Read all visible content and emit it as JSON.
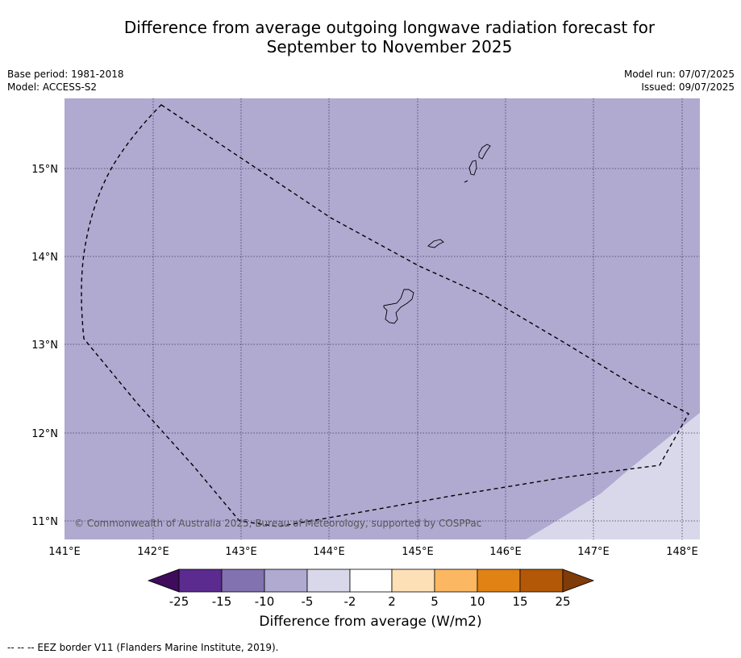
{
  "title": {
    "line1": "Difference from average outgoing longwave radiation forecast for",
    "line2": "September to November 2025"
  },
  "meta": {
    "base_period": "Base period: 1981-2018",
    "model": "Model: ACCESS-S2",
    "model_run": "Model run: 07/07/2025",
    "issued": "Issued: 09/07/2025"
  },
  "map": {
    "copyright": "© Commonwealth of Australia 2025, Bureau of Meteorology, supported by COSPPac",
    "lon_ticks": [
      "141°E",
      "142°E",
      "143°E",
      "144°E",
      "145°E",
      "146°E",
      "147°E",
      "148°E"
    ],
    "lat_ticks": [
      "15°N",
      "14°N",
      "13°N",
      "12°N",
      "11°N"
    ],
    "fill_colors": {
      "minus5_to_minus10": "#b0aad1",
      "minus2_to_minus5": "#d9d8eb"
    }
  },
  "colorbar": {
    "title": "Difference from average (W/m2)",
    "tick_labels": [
      "-25",
      "-15",
      "-10",
      "-5",
      "-2",
      "2",
      "5",
      "10",
      "15",
      "25"
    ],
    "colors": [
      "#3f0b5c",
      "#5c2b8f",
      "#8272b0",
      "#b0aad1",
      "#d9d8eb",
      "#ffffff",
      "#fde0b5",
      "#fcb762",
      "#e08214",
      "#b35806",
      "#7f3b08"
    ]
  },
  "footnote": "--  --  -- EEZ border V11 (Flanders Marine Institute, 2019)."
}
